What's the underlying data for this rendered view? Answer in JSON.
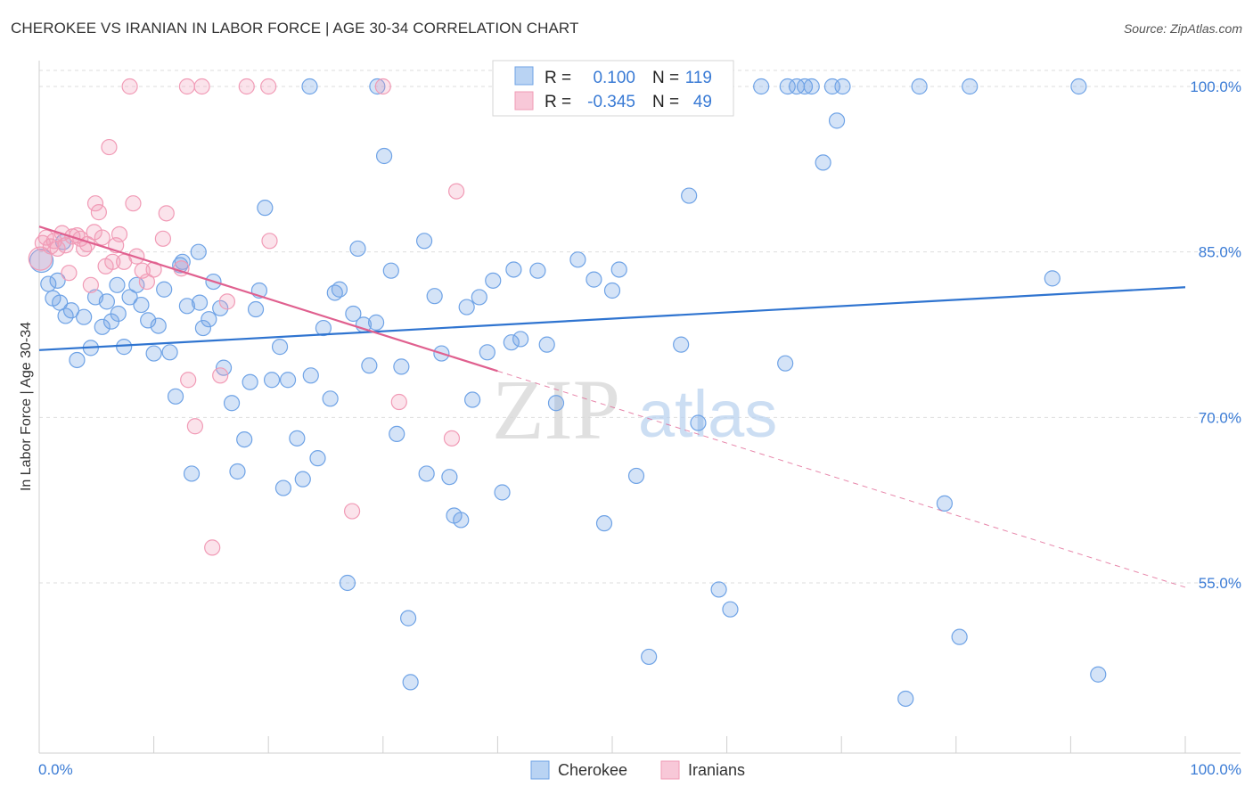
{
  "title": "CHEROKEE VS IRANIAN IN LABOR FORCE | AGE 30-34 CORRELATION CHART",
  "source": "Source: ZipAtlas.com",
  "watermark": {
    "zip": "ZIP",
    "atlas": "atlas"
  },
  "legend": {
    "rows": [
      {
        "r_label": "R =",
        "r_value": "0.100",
        "n_label": "N =",
        "n_value": "119"
      },
      {
        "r_label": "R =",
        "r_value": "-0.345",
        "n_label": "N =",
        "n_value": "49"
      }
    ]
  },
  "bottom_legend": [
    "Cherokee",
    "Iranians"
  ],
  "chart_data": {
    "type": "scatter",
    "title": "CHEROKEE VS IRANIAN IN LABOR FORCE | AGE 30-34 CORRELATION CHART",
    "xlabel": "",
    "ylabel": "In Labor Force | Age 30-34",
    "xlim": [
      0,
      100
    ],
    "ylim": [
      42,
      101.5
    ],
    "x_tick_labels": [
      "0.0%",
      "100.0%"
    ],
    "y_ticks": [
      55,
      70,
      85,
      100
    ],
    "y_tick_labels": [
      "55.0%",
      "70.0%",
      "85.0%",
      "100.0%"
    ],
    "grid": true,
    "colors": {
      "cherokee": "#6fa3e6",
      "cherokee_line": "#2f74d0",
      "iranians": "#f19bb6",
      "iranians_line": "#e0608f"
    },
    "series": [
      {
        "name": "Cherokee",
        "R": 0.1,
        "N": 119,
        "trend": {
          "x": [
            0,
            100
          ],
          "y": [
            76.1,
            81.8
          ]
        },
        "points": [
          [
            0.2,
            84.2
          ],
          [
            0.8,
            82.1
          ],
          [
            1.2,
            80.8
          ],
          [
            1.8,
            80.4
          ],
          [
            2.3,
            79.2
          ],
          [
            2.8,
            79.7
          ],
          [
            3.3,
            75.2
          ],
          [
            3.9,
            79.1
          ],
          [
            4.5,
            76.3
          ],
          [
            4.9,
            80.9
          ],
          [
            5.5,
            78.2
          ],
          [
            5.9,
            80.5
          ],
          [
            6.3,
            78.7
          ],
          [
            6.9,
            79.4
          ],
          [
            7.4,
            76.4
          ],
          [
            7.9,
            80.9
          ],
          [
            8.5,
            82.0
          ],
          [
            8.9,
            80.2
          ],
          [
            9.5,
            78.8
          ],
          [
            10.0,
            75.8
          ],
          [
            10.4,
            78.3
          ],
          [
            10.9,
            81.6
          ],
          [
            11.4,
            75.9
          ],
          [
            11.9,
            71.9
          ],
          [
            12.3,
            83.8
          ],
          [
            12.9,
            80.1
          ],
          [
            13.3,
            64.9
          ],
          [
            14.0,
            80.4
          ],
          [
            14.3,
            78.1
          ],
          [
            14.8,
            78.9
          ],
          [
            15.2,
            82.3
          ],
          [
            15.8,
            79.9
          ],
          [
            16.1,
            74.5
          ],
          [
            16.8,
            71.3
          ],
          [
            17.3,
            65.1
          ],
          [
            17.9,
            68.0
          ],
          [
            18.4,
            73.2
          ],
          [
            18.9,
            79.8
          ],
          [
            19.2,
            81.5
          ],
          [
            19.7,
            89.0
          ],
          [
            20.3,
            73.4
          ],
          [
            21.0,
            76.4
          ],
          [
            21.3,
            63.6
          ],
          [
            21.7,
            73.4
          ],
          [
            22.5,
            68.1
          ],
          [
            23.0,
            64.4
          ],
          [
            23.7,
            73.8
          ],
          [
            24.3,
            66.3
          ],
          [
            24.8,
            78.1
          ],
          [
            25.4,
            71.7
          ],
          [
            25.8,
            81.3
          ],
          [
            26.2,
            81.6
          ],
          [
            26.9,
            55.0
          ],
          [
            27.4,
            79.4
          ],
          [
            27.8,
            85.3
          ],
          [
            28.3,
            78.4
          ],
          [
            28.8,
            74.7
          ],
          [
            29.4,
            78.6
          ],
          [
            30.1,
            93.7
          ],
          [
            30.7,
            83.3
          ],
          [
            31.2,
            68.5
          ],
          [
            31.6,
            74.6
          ],
          [
            32.2,
            51.8
          ],
          [
            32.4,
            46.0
          ],
          [
            33.6,
            86.0
          ],
          [
            33.8,
            64.9
          ],
          [
            34.5,
            81.0
          ],
          [
            35.1,
            75.8
          ],
          [
            35.8,
            64.6
          ],
          [
            36.2,
            61.1
          ],
          [
            36.8,
            60.7
          ],
          [
            37.3,
            80.0
          ],
          [
            37.8,
            71.6
          ],
          [
            38.4,
            80.9
          ],
          [
            39.1,
            75.9
          ],
          [
            39.6,
            82.4
          ],
          [
            40.4,
            63.2
          ],
          [
            41.2,
            76.8
          ],
          [
            41.4,
            83.4
          ],
          [
            42.0,
            77.1
          ],
          [
            43.5,
            83.3
          ],
          [
            44.3,
            76.6
          ],
          [
            45.1,
            71.3
          ],
          [
            47.0,
            84.3
          ],
          [
            48.4,
            82.5
          ],
          [
            49.3,
            60.4
          ],
          [
            50.0,
            81.5
          ],
          [
            50.6,
            83.4
          ],
          [
            52.1,
            64.7
          ],
          [
            53.2,
            48.3
          ],
          [
            56.0,
            76.6
          ],
          [
            56.7,
            90.1
          ],
          [
            57.5,
            69.5
          ],
          [
            59.3,
            54.4
          ],
          [
            60.3,
            52.6
          ],
          [
            63.0,
            100.0
          ],
          [
            65.1,
            74.9
          ],
          [
            65.3,
            100.0
          ],
          [
            66.1,
            100.0
          ],
          [
            66.8,
            100.0
          ],
          [
            67.4,
            100.0
          ],
          [
            68.4,
            93.1
          ],
          [
            69.2,
            100.0
          ],
          [
            69.6,
            96.9
          ],
          [
            70.1,
            100.0
          ],
          [
            76.8,
            100.0
          ],
          [
            79.0,
            62.2
          ],
          [
            80.3,
            50.1
          ],
          [
            81.2,
            100.0
          ],
          [
            88.4,
            82.6
          ],
          [
            90.7,
            100.0
          ],
          [
            92.4,
            46.7
          ],
          [
            75.6,
            44.5
          ],
          [
            23.6,
            100.0
          ],
          [
            29.5,
            100.0
          ],
          [
            48.9,
            100.0
          ],
          [
            1.6,
            82.4
          ],
          [
            6.8,
            82.0
          ],
          [
            12.5,
            84.1
          ],
          [
            13.9,
            85.0
          ],
          [
            2.1,
            85.9
          ]
        ]
      },
      {
        "name": "Iranians",
        "R": -0.345,
        "N": 49,
        "trend": {
          "x": [
            0,
            40
          ],
          "y": [
            87.3,
            74.2
          ]
        },
        "trend_dashed": {
          "x": [
            40,
            100
          ],
          "y": [
            74.2,
            54.6
          ]
        },
        "points": [
          [
            0.3,
            85.8
          ],
          [
            0.6,
            86.3
          ],
          [
            1.0,
            85.5
          ],
          [
            1.3,
            86.0
          ],
          [
            1.6,
            85.3
          ],
          [
            2.0,
            86.7
          ],
          [
            2.3,
            85.6
          ],
          [
            2.6,
            83.1
          ],
          [
            2.9,
            86.4
          ],
          [
            3.3,
            86.5
          ],
          [
            3.6,
            86.2
          ],
          [
            3.9,
            85.3
          ],
          [
            4.2,
            85.7
          ],
          [
            4.5,
            82.0
          ],
          [
            4.8,
            86.8
          ],
          [
            4.9,
            89.4
          ],
          [
            5.2,
            88.6
          ],
          [
            5.5,
            86.3
          ],
          [
            5.8,
            83.7
          ],
          [
            6.1,
            94.5
          ],
          [
            6.4,
            84.1
          ],
          [
            6.7,
            85.6
          ],
          [
            7.0,
            86.6
          ],
          [
            7.4,
            84.1
          ],
          [
            8.2,
            89.4
          ],
          [
            8.5,
            84.6
          ],
          [
            9.0,
            83.3
          ],
          [
            9.4,
            82.3
          ],
          [
            10.0,
            83.4
          ],
          [
            10.8,
            86.2
          ],
          [
            11.1,
            88.5
          ],
          [
            12.4,
            83.5
          ],
          [
            13.0,
            73.4
          ],
          [
            13.6,
            69.2
          ],
          [
            14.2,
            100.0
          ],
          [
            15.1,
            58.2
          ],
          [
            15.8,
            73.8
          ],
          [
            16.4,
            80.5
          ],
          [
            18.1,
            100.0
          ],
          [
            20.1,
            86.0
          ],
          [
            27.3,
            61.5
          ],
          [
            30.0,
            100.0
          ],
          [
            31.4,
            71.4
          ],
          [
            36.0,
            68.1
          ],
          [
            36.4,
            90.5
          ],
          [
            7.9,
            100.0
          ],
          [
            12.9,
            100.0
          ],
          [
            20.0,
            100.0
          ],
          [
            0.1,
            84.4
          ]
        ]
      }
    ]
  }
}
